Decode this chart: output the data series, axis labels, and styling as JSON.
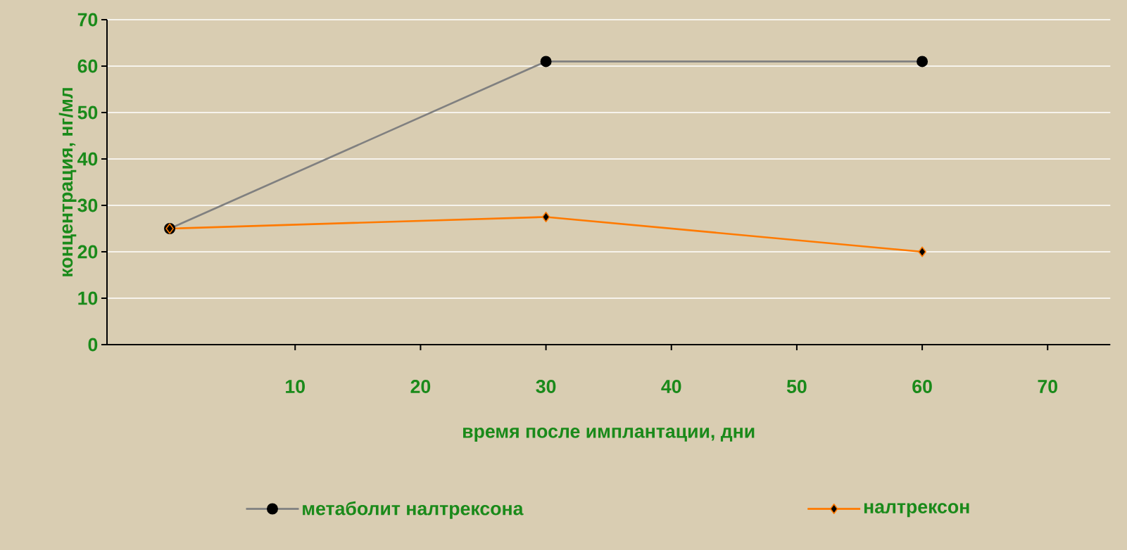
{
  "chart_data": {
    "type": "line",
    "xlabel": "время после имплантации, дни",
    "ylabel": "концентрация, нг/мл",
    "x": [
      0,
      30,
      60
    ],
    "series": [
      {
        "name": "метаболит налтрексона",
        "color": "#808080",
        "marker": "circle",
        "values": [
          25,
          61,
          61
        ]
      },
      {
        "name": "налтрексон",
        "color": "#ff7a00",
        "marker": "diamond",
        "values": [
          25,
          27.5,
          20
        ]
      }
    ],
    "xlim": [
      -5,
      75
    ],
    "xticks": [
      10,
      20,
      30,
      40,
      50,
      60,
      70
    ],
    "ylim": [
      0,
      70
    ],
    "yticks": [
      0,
      10,
      20,
      30,
      40,
      50,
      60,
      70
    ],
    "grid": "y",
    "legend": "bottom"
  }
}
